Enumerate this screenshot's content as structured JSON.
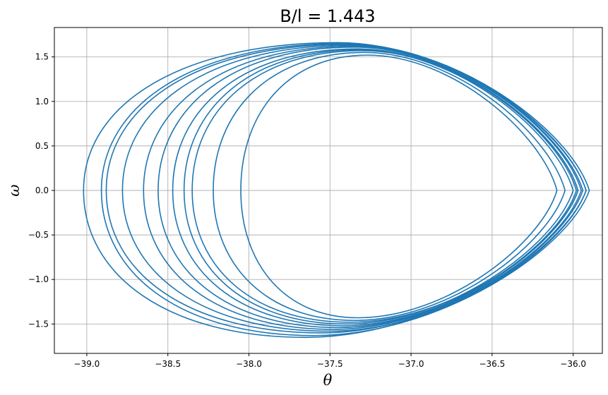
{
  "chart_data": {
    "type": "line",
    "title": "B/l = 1.443",
    "xlabel": "θ",
    "ylabel": "ω",
    "xlim": [
      -39.2,
      -35.82
    ],
    "ylim": [
      -1.83,
      1.83
    ],
    "x_ticks": [
      -39.0,
      -38.5,
      -38.0,
      -37.5,
      -37.0,
      -36.5,
      -36.0
    ],
    "x_tick_labels": [
      "−39.0",
      "−38.5",
      "−38.0",
      "−37.5",
      "−37.0",
      "−36.5",
      "−36.0"
    ],
    "y_ticks": [
      -1.5,
      -1.0,
      -0.5,
      0.0,
      0.5,
      1.0,
      1.5
    ],
    "y_tick_labels": [
      "−1.5",
      "−1.0",
      "−0.5",
      "0.0",
      "0.5",
      "1.0",
      "1.5"
    ],
    "grid": true,
    "line_color": "#1f77b4",
    "series": [
      {
        "orbits": [
          {
            "theta_min": -39.02,
            "theta_max": -35.92,
            "omega_top": 1.66,
            "omega_bottom": -1.65,
            "theta_top": -37.45,
            "theta_bottom": -37.65
          },
          {
            "theta_min": -38.91,
            "theta_max": -35.9,
            "omega_top": 1.65,
            "omega_bottom": -1.63,
            "theta_top": -37.42,
            "theta_bottom": -37.6
          },
          {
            "theta_min": -38.88,
            "theta_max": -35.94,
            "omega_top": 1.64,
            "omega_bottom": -1.6,
            "theta_top": -37.4,
            "theta_bottom": -37.55
          },
          {
            "theta_min": -38.78,
            "theta_max": -35.92,
            "omega_top": 1.63,
            "omega_bottom": -1.58,
            "theta_top": -37.38,
            "theta_bottom": -37.5
          },
          {
            "theta_min": -38.65,
            "theta_max": -35.95,
            "omega_top": 1.62,
            "omega_bottom": -1.56,
            "theta_top": -37.36,
            "theta_bottom": -37.48
          },
          {
            "theta_min": -38.56,
            "theta_max": -35.97,
            "omega_top": 1.61,
            "omega_bottom": -1.54,
            "theta_top": -37.35,
            "theta_bottom": -37.45
          },
          {
            "theta_min": -38.47,
            "theta_max": -35.98,
            "omega_top": 1.59,
            "omega_bottom": -1.52,
            "theta_top": -37.33,
            "theta_bottom": -37.42
          },
          {
            "theta_min": -38.4,
            "theta_max": -36.0,
            "omega_top": 1.58,
            "omega_bottom": -1.5,
            "theta_top": -37.32,
            "theta_bottom": -37.4
          },
          {
            "theta_min": -38.35,
            "theta_max": -35.97,
            "omega_top": 1.57,
            "omega_bottom": -1.48,
            "theta_top": -37.3,
            "theta_bottom": -37.38
          },
          {
            "theta_min": -38.22,
            "theta_max": -36.05,
            "omega_top": 1.55,
            "omega_bottom": -1.46,
            "theta_top": -37.29,
            "theta_bottom": -37.35
          },
          {
            "theta_min": -38.05,
            "theta_max": -36.1,
            "omega_top": 1.52,
            "omega_bottom": -1.43,
            "theta_top": -37.27,
            "theta_bottom": -37.33
          }
        ]
      }
    ]
  }
}
